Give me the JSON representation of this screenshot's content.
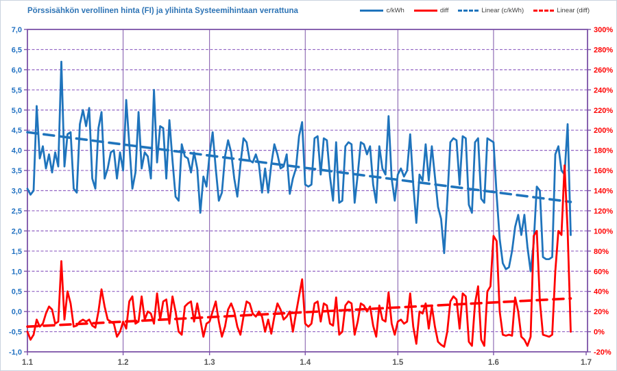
{
  "chart_data": {
    "type": "line",
    "title": "Pörssisähkön verollinen hinta (FI) ja ylihinta Systeemihintaan verrattuna",
    "title_color": "#2e74b5",
    "grid": {
      "line_color": "#7c52a8",
      "dash_color": "#9061c2",
      "background": "#ffffff"
    },
    "left_axis": {
      "min": -1.0,
      "max": 7.0,
      "step": 0.5,
      "label_color": "#1f6fc0",
      "tick_labels": [
        "7,0",
        "6,5",
        "6,0",
        "5,5",
        "5,0",
        "4,5",
        "4,0",
        "3,5",
        "3,0",
        "2,5",
        "2,0",
        "1,5",
        "1,0",
        "0,5",
        "0,0",
        "-0,5",
        "-1,0"
      ]
    },
    "right_axis": {
      "min": -20,
      "max": 300,
      "step": 20,
      "label_color": "#ff0000",
      "tick_labels": [
        "300%",
        "280%",
        "260%",
        "240%",
        "220%",
        "200%",
        "180%",
        "160%",
        "140%",
        "120%",
        "100%",
        "80%",
        "60%",
        "40%",
        "20%",
        "0%",
        "-20%"
      ]
    },
    "x_axis": {
      "label_color": "#595959",
      "tick_labels": [
        "1.1",
        "1.2",
        "1.3",
        "1.4",
        "1.5",
        "1.6",
        "1.7"
      ],
      "tick_days": [
        0,
        31,
        59,
        90,
        120,
        151,
        181
      ],
      "total_days": 181
    },
    "series": [
      {
        "name": "c/kWh",
        "axis": "left",
        "color": "#1f74bc",
        "values": [
          3.05,
          2.9,
          3.0,
          5.1,
          3.8,
          4.1,
          3.55,
          3.9,
          3.45,
          3.95,
          3.6,
          6.2,
          3.6,
          4.4,
          4.45,
          3.05,
          2.95,
          4.65,
          5.0,
          4.6,
          5.05,
          3.3,
          3.05,
          4.55,
          4.95,
          3.3,
          3.55,
          3.95,
          4.0,
          3.3,
          3.95,
          3.5,
          5.25,
          4.15,
          3.05,
          3.45,
          4.95,
          3.55,
          3.95,
          3.85,
          3.3,
          5.5,
          3.7,
          4.6,
          4.55,
          3.3,
          4.75,
          3.75,
          2.85,
          2.75,
          4.15,
          3.85,
          3.8,
          3.45,
          3.95,
          3.55,
          2.45,
          3.35,
          3.1,
          3.9,
          4.45,
          3.55,
          2.75,
          2.95,
          3.85,
          4.25,
          3.95,
          3.3,
          2.85,
          3.65,
          4.3,
          4.2,
          3.75,
          3.7,
          3.9,
          3.65,
          2.95,
          3.55,
          2.95,
          3.65,
          4.15,
          3.9,
          3.55,
          3.6,
          3.9,
          2.92,
          3.3,
          3.55,
          4.35,
          4.7,
          3.15,
          3.1,
          3.15,
          4.3,
          4.35,
          3.4,
          4.3,
          4.25,
          3.35,
          2.75,
          4.2,
          2.7,
          2.75,
          4.1,
          4.2,
          4.15,
          2.7,
          3.4,
          4.2,
          4.15,
          3.9,
          4.1,
          3.15,
          2.7,
          4.1,
          3.55,
          3.4,
          4.85,
          3.3,
          2.75,
          3.4,
          3.55,
          3.35,
          3.5,
          4.4,
          3.15,
          2.2,
          3.4,
          3.25,
          4.15,
          3.25,
          4.1,
          3.35,
          2.6,
          2.3,
          1.45,
          2.75,
          4.2,
          4.3,
          4.25,
          3.15,
          4.35,
          4.3,
          2.65,
          2.45,
          4.2,
          4.3,
          2.8,
          2.7,
          4.3,
          4.25,
          4.2,
          2.9,
          1.8,
          1.2,
          1.05,
          1.1,
          1.5,
          2.1,
          2.4,
          1.9,
          2.4,
          1.6,
          1.0,
          1.7,
          3.1,
          3.0,
          1.35,
          1.3,
          1.3,
          1.35,
          3.9,
          4.1,
          3.5,
          3.4,
          4.65,
          1.9
        ]
      },
      {
        "name": "diff",
        "axis": "right",
        "color": "#ff0000",
        "values": [
          0,
          -8,
          -3,
          12,
          5,
          8,
          18,
          25,
          22,
          8,
          10,
          70,
          12,
          40,
          28,
          5,
          6,
          10,
          12,
          10,
          12,
          6,
          4,
          20,
          42,
          25,
          12,
          10,
          8,
          -5,
          0,
          10,
          3,
          30,
          35,
          8,
          10,
          35,
          12,
          20,
          18,
          8,
          38,
          12,
          30,
          32,
          8,
          35,
          20,
          0,
          -3,
          25,
          28,
          30,
          10,
          28,
          12,
          -5,
          8,
          10,
          20,
          30,
          10,
          -5,
          5,
          22,
          28,
          20,
          5,
          -3,
          15,
          30,
          28,
          18,
          15,
          20,
          15,
          0,
          12,
          -2,
          15,
          28,
          22,
          12,
          15,
          20,
          0,
          18,
          35,
          52,
          8,
          5,
          8,
          28,
          30,
          10,
          28,
          26,
          8,
          6,
          34,
          -3,
          0,
          26,
          30,
          28,
          -3,
          10,
          28,
          26,
          20,
          25,
          6,
          -5,
          26,
          12,
          10,
          39,
          8,
          -3,
          10,
          12,
          8,
          10,
          38,
          5,
          -12,
          20,
          18,
          28,
          3,
          25,
          5,
          -10,
          -13,
          -15,
          0,
          30,
          35,
          32,
          3,
          38,
          35,
          -10,
          -14,
          28,
          45,
          -8,
          -14,
          40,
          45,
          95,
          90,
          20,
          -3,
          -4,
          -3,
          -4,
          34,
          20,
          -5,
          -8,
          -14,
          -5,
          95,
          100,
          30,
          -3,
          -4,
          -5,
          -3,
          60,
          100,
          96,
          165,
          100,
          0
        ]
      }
    ],
    "trendlines": [
      {
        "name": "Linear (c/kWh)",
        "axis": "left",
        "color": "#1f74bc",
        "start": 4.45,
        "end": 2.72
      },
      {
        "name": "Linear (diff)",
        "axis": "right",
        "color": "#ff0000",
        "start": 5,
        "end": 33
      }
    ],
    "legend_position": "top-right",
    "ylim_left": [
      -1.0,
      7.0
    ],
    "ylim_right": [
      -20,
      300
    ]
  }
}
